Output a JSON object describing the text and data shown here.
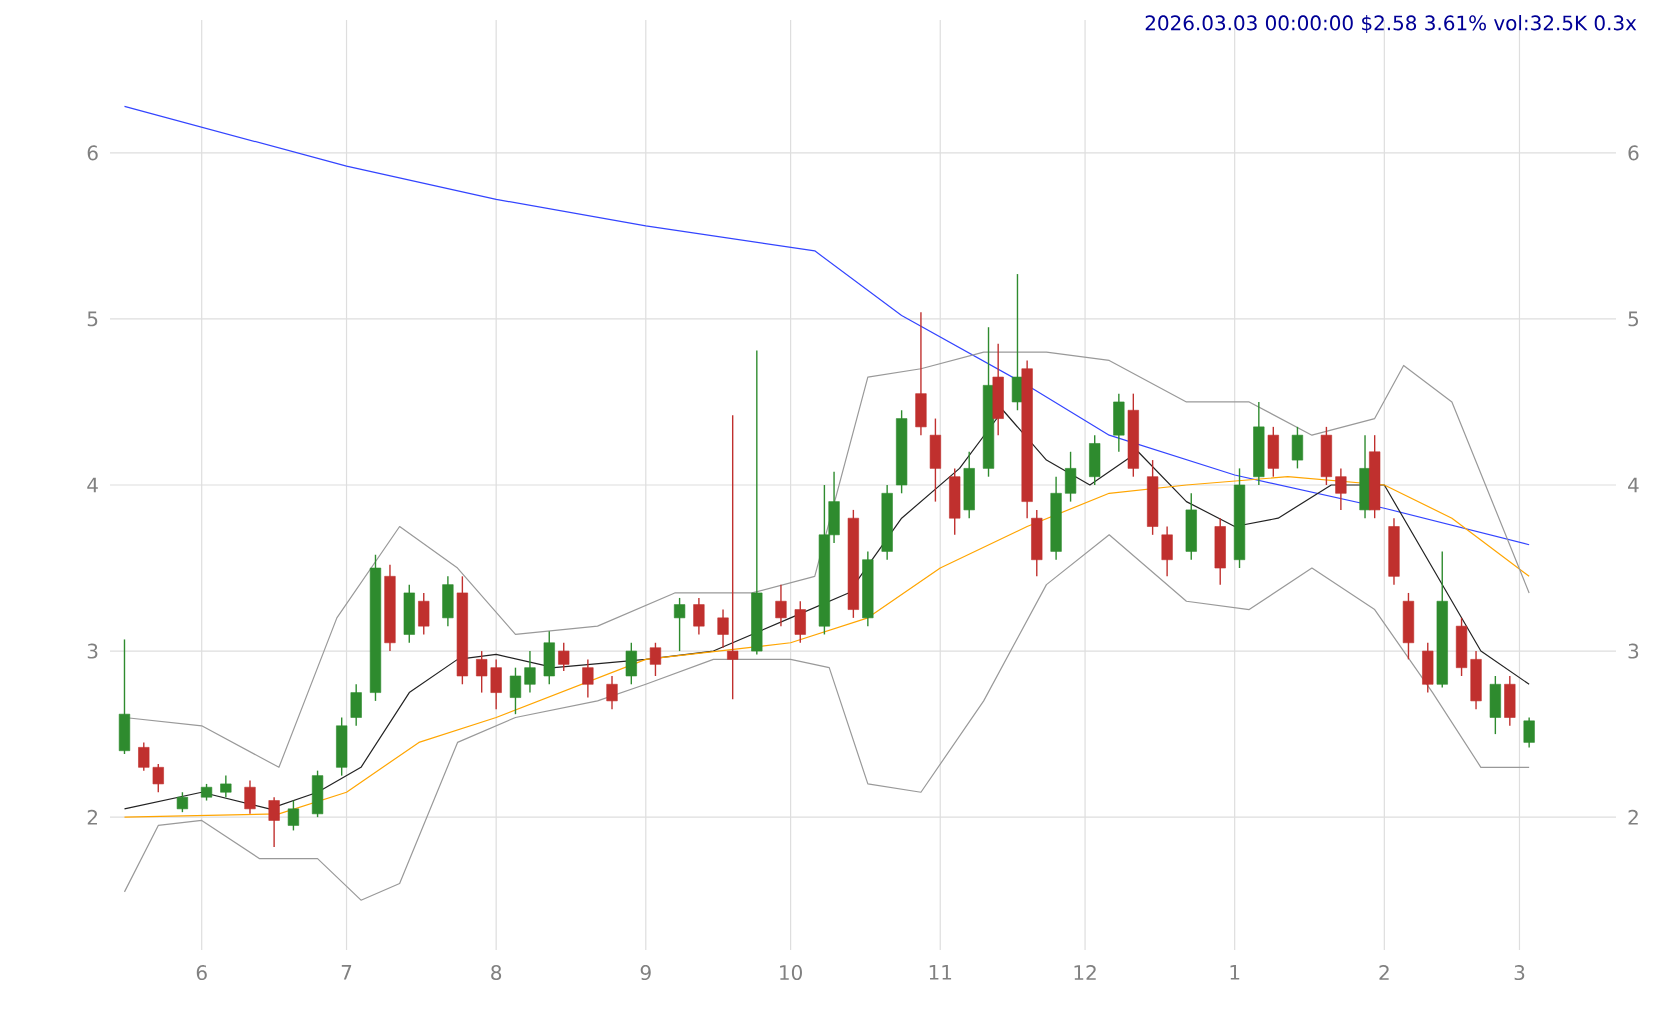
{
  "chart_data": {
    "type": "candlestick",
    "title": "2026.03.03 00:00:00 $2.58 3.61% vol:32.5K 0.3x",
    "x": [
      "2025-05-16",
      "2025-05-20",
      "2025-05-23",
      "2025-05-28",
      "2025-06-02",
      "2025-06-06",
      "2025-06-11",
      "2025-06-16",
      "2025-06-20",
      "2025-06-25",
      "2025-06-30",
      "2025-07-03",
      "2025-07-07",
      "2025-07-10",
      "2025-07-14",
      "2025-07-17",
      "2025-07-22",
      "2025-07-25",
      "2025-07-29",
      "2025-08-01",
      "2025-08-05",
      "2025-08-08",
      "2025-08-12",
      "2025-08-15",
      "2025-08-20",
      "2025-08-25",
      "2025-08-29",
      "2025-09-03",
      "2025-09-08",
      "2025-09-12",
      "2025-09-17",
      "2025-09-19",
      "2025-09-24",
      "2025-09-29",
      "2025-10-03",
      "2025-10-08",
      "2025-10-10",
      "2025-10-14",
      "2025-10-17",
      "2025-10-21",
      "2025-10-24",
      "2025-10-28",
      "2025-10-31",
      "2025-11-04",
      "2025-11-07",
      "2025-11-11",
      "2025-11-13",
      "2025-11-17",
      "2025-11-19",
      "2025-11-21",
      "2025-11-25",
      "2025-11-28",
      "2025-12-03",
      "2025-12-08",
      "2025-12-11",
      "2025-12-15",
      "2025-12-18",
      "2025-12-23",
      "2025-12-29",
      "2026-01-02",
      "2026-01-06",
      "2026-01-09",
      "2026-01-14",
      "2026-01-20",
      "2026-01-23",
      "2026-01-28",
      "2026-01-30",
      "2026-02-03",
      "2026-02-06",
      "2026-02-10",
      "2026-02-13",
      "2026-02-17",
      "2026-02-20",
      "2026-02-24",
      "2026-02-27",
      "2026-03-03"
    ],
    "ohlc": [
      [
        2.4,
        3.07,
        2.38,
        2.62
      ],
      [
        2.42,
        2.45,
        2.28,
        2.3
      ],
      [
        2.3,
        2.32,
        2.15,
        2.2
      ],
      [
        2.05,
        2.15,
        2.03,
        2.12
      ],
      [
        2.12,
        2.2,
        2.1,
        2.18
      ],
      [
        2.15,
        2.25,
        2.12,
        2.2
      ],
      [
        2.18,
        2.22,
        2.02,
        2.05
      ],
      [
        2.1,
        2.12,
        1.82,
        1.98
      ],
      [
        1.95,
        2.1,
        1.92,
        2.05
      ],
      [
        2.02,
        2.28,
        2.0,
        2.25
      ],
      [
        2.3,
        2.6,
        2.25,
        2.55
      ],
      [
        2.6,
        2.8,
        2.55,
        2.75
      ],
      [
        2.75,
        3.58,
        2.7,
        3.5
      ],
      [
        3.45,
        3.52,
        3.0,
        3.05
      ],
      [
        3.1,
        3.4,
        3.05,
        3.35
      ],
      [
        3.3,
        3.35,
        3.1,
        3.15
      ],
      [
        3.2,
        3.45,
        3.15,
        3.4
      ],
      [
        3.35,
        3.45,
        2.8,
        2.85
      ],
      [
        2.95,
        3.0,
        2.75,
        2.85
      ],
      [
        2.9,
        2.95,
        2.65,
        2.75
      ],
      [
        2.72,
        2.9,
        2.62,
        2.85
      ],
      [
        2.8,
        3.0,
        2.75,
        2.9
      ],
      [
        2.85,
        3.12,
        2.8,
        3.05
      ],
      [
        3.0,
        3.05,
        2.88,
        2.92
      ],
      [
        2.9,
        2.95,
        2.72,
        2.8
      ],
      [
        2.8,
        2.85,
        2.65,
        2.7
      ],
      [
        2.85,
        3.05,
        2.8,
        3.0
      ],
      [
        3.02,
        3.05,
        2.85,
        2.92
      ],
      [
        3.2,
        3.32,
        3.0,
        3.28
      ],
      [
        3.28,
        3.32,
        3.1,
        3.15
      ],
      [
        3.2,
        3.25,
        3.02,
        3.1
      ],
      [
        3.0,
        4.42,
        2.71,
        2.95
      ],
      [
        3.0,
        4.81,
        2.98,
        3.35
      ],
      [
        3.3,
        3.4,
        3.15,
        3.2
      ],
      [
        3.25,
        3.3,
        3.05,
        3.1
      ],
      [
        3.15,
        4.0,
        3.1,
        3.7
      ],
      [
        3.7,
        4.08,
        3.65,
        3.9
      ],
      [
        3.8,
        3.85,
        3.2,
        3.25
      ],
      [
        3.2,
        3.6,
        3.15,
        3.55
      ],
      [
        3.6,
        4.0,
        3.55,
        3.95
      ],
      [
        4.0,
        4.45,
        3.95,
        4.4
      ],
      [
        4.55,
        5.04,
        4.3,
        4.35
      ],
      [
        4.3,
        4.4,
        3.9,
        4.1
      ],
      [
        4.05,
        4.1,
        3.7,
        3.8
      ],
      [
        3.85,
        4.2,
        3.8,
        4.1
      ],
      [
        4.1,
        4.95,
        4.05,
        4.6
      ],
      [
        4.65,
        4.85,
        4.3,
        4.4
      ],
      [
        4.5,
        5.27,
        4.45,
        4.65
      ],
      [
        4.7,
        4.75,
        3.8,
        3.9
      ],
      [
        3.8,
        3.85,
        3.45,
        3.55
      ],
      [
        3.6,
        4.05,
        3.55,
        3.95
      ],
      [
        3.95,
        4.2,
        3.9,
        4.1
      ],
      [
        4.05,
        4.3,
        4.0,
        4.25
      ],
      [
        4.3,
        4.55,
        4.2,
        4.5
      ],
      [
        4.45,
        4.55,
        4.05,
        4.1
      ],
      [
        4.05,
        4.15,
        3.7,
        3.75
      ],
      [
        3.7,
        3.75,
        3.45,
        3.55
      ],
      [
        3.6,
        3.95,
        3.55,
        3.85
      ],
      [
        3.75,
        3.8,
        3.4,
        3.5
      ],
      [
        3.55,
        4.1,
        3.5,
        4.0
      ],
      [
        4.05,
        4.5,
        4.0,
        4.35
      ],
      [
        4.3,
        4.35,
        4.05,
        4.1
      ],
      [
        4.15,
        4.35,
        4.1,
        4.3
      ],
      [
        4.3,
        4.35,
        4.0,
        4.05
      ],
      [
        4.05,
        4.1,
        3.85,
        3.95
      ],
      [
        3.85,
        4.3,
        3.8,
        4.1
      ],
      [
        4.2,
        4.3,
        3.8,
        3.85
      ],
      [
        3.75,
        3.8,
        3.4,
        3.45
      ],
      [
        3.3,
        3.35,
        2.95,
        3.05
      ],
      [
        3.0,
        3.05,
        2.75,
        2.8
      ],
      [
        2.8,
        3.6,
        2.78,
        3.3
      ],
      [
        3.15,
        3.2,
        2.85,
        2.9
      ],
      [
        2.95,
        3.0,
        2.65,
        2.7
      ],
      [
        2.6,
        2.85,
        2.5,
        2.8
      ],
      [
        2.8,
        2.85,
        2.55,
        2.6
      ],
      [
        2.45,
        2.6,
        2.42,
        2.58
      ]
    ],
    "colors": [
      "#2e8b2e",
      "#c0302e",
      "#c0302e",
      "#2e8b2e",
      "#2e8b2e",
      "#2e8b2e",
      "#c0302e",
      "#c0302e",
      "#2e8b2e",
      "#2e8b2e",
      "#2e8b2e",
      "#2e8b2e",
      "#2e8b2e",
      "#c0302e",
      "#2e8b2e",
      "#c0302e",
      "#2e8b2e",
      "#c0302e",
      "#c0302e",
      "#c0302e",
      "#2e8b2e",
      "#2e8b2e",
      "#2e8b2e",
      "#c0302e",
      "#c0302e",
      "#c0302e",
      "#2e8b2e",
      "#c0302e",
      "#2e8b2e",
      "#c0302e",
      "#c0302e",
      "#c0302e",
      "#2e8b2e",
      "#c0302e",
      "#c0302e",
      "#2e8b2e",
      "#2e8b2e",
      "#c0302e",
      "#2e8b2e",
      "#2e8b2e",
      "#2e8b2e",
      "#c0302e",
      "#c0302e",
      "#c0302e",
      "#2e8b2e",
      "#2e8b2e",
      "#c0302e",
      "#2e8b2e",
      "#c0302e",
      "#c0302e",
      "#2e8b2e",
      "#2e8b2e",
      "#2e8b2e",
      "#2e8b2e",
      "#c0302e",
      "#c0302e",
      "#c0302e",
      "#2e8b2e",
      "#c0302e",
      "#2e8b2e",
      "#2e8b2e",
      "#c0302e",
      "#2e8b2e",
      "#c0302e",
      "#c0302e",
      "#2e8b2e",
      "#c0302e",
      "#c0302e",
      "#c0302e",
      "#c0302e",
      "#2e8b2e",
      "#c0302e",
      "#c0302e",
      "#2e8b2e",
      "#c0302e",
      "#2e8b2e"
    ],
    "series": [
      {
        "type": "line",
        "color": "#3344ff",
        "x": [
          "2025-05-16",
          "2025-07-01",
          "2025-08-01",
          "2025-09-01",
          "2025-10-06",
          "2025-10-24",
          "2025-11-19",
          "2025-12-06",
          "2026-01-01",
          "2026-02-01",
          "2026-03-03"
        ],
        "values": [
          6.28,
          5.92,
          5.72,
          5.56,
          5.41,
          5.02,
          4.6,
          4.3,
          4.06,
          3.86,
          3.64
        ]
      },
      {
        "type": "line",
        "color": "#222222",
        "x": [
          "2025-05-16",
          "2025-06-01",
          "2025-06-15",
          "2025-06-25",
          "2025-07-04",
          "2025-07-14",
          "2025-07-24",
          "2025-08-01",
          "2025-08-13",
          "2025-09-01",
          "2025-09-15",
          "2025-10-01",
          "2025-10-13",
          "2025-10-24",
          "2025-11-05",
          "2025-11-14",
          "2025-11-23",
          "2025-12-02",
          "2025-12-12",
          "2025-12-22",
          "2026-01-01",
          "2026-01-10",
          "2026-01-21",
          "2026-02-01",
          "2026-02-11",
          "2026-02-21",
          "2026-03-03"
        ],
        "values": [
          2.05,
          2.15,
          2.05,
          2.15,
          2.3,
          2.75,
          2.95,
          2.98,
          2.9,
          2.95,
          3.0,
          3.2,
          3.35,
          3.8,
          4.1,
          4.45,
          4.15,
          4.0,
          4.2,
          3.9,
          3.75,
          3.8,
          4.0,
          4.0,
          3.5,
          3.0,
          2.8
        ]
      },
      {
        "type": "line",
        "color": "#ffa500",
        "x": [
          "2025-05-16",
          "2025-06-17",
          "2025-07-01",
          "2025-07-16",
          "2025-08-01",
          "2025-09-01",
          "2025-10-01",
          "2025-10-17",
          "2025-11-01",
          "2025-11-19",
          "2025-12-06",
          "2025-12-22",
          "2026-01-12",
          "2026-02-01",
          "2026-02-15",
          "2026-03-03"
        ],
        "values": [
          2.0,
          2.02,
          2.15,
          2.45,
          2.6,
          2.95,
          3.05,
          3.2,
          3.5,
          3.75,
          3.95,
          4.0,
          4.05,
          4.0,
          3.8,
          3.45
        ]
      },
      {
        "type": "line",
        "color": "#999999",
        "x": [
          "2025-05-16",
          "2025-06-01",
          "2025-06-17",
          "2025-06-29",
          "2025-07-12",
          "2025-07-24",
          "2025-08-05",
          "2025-08-22",
          "2025-09-07",
          "2025-09-23",
          "2025-10-06",
          "2025-10-17",
          "2025-10-28",
          "2025-11-10",
          "2025-11-23",
          "2025-12-06",
          "2025-12-22",
          "2026-01-04",
          "2026-01-17",
          "2026-01-30",
          "2026-02-05",
          "2026-02-15",
          "2026-03-03"
        ],
        "values": [
          2.6,
          2.55,
          2.3,
          3.2,
          3.75,
          3.5,
          3.1,
          3.15,
          3.35,
          3.35,
          3.45,
          4.65,
          4.7,
          4.8,
          4.8,
          4.75,
          4.5,
          4.5,
          4.3,
          4.4,
          4.72,
          4.5,
          3.35
        ]
      },
      {
        "type": "line",
        "color": "#999999",
        "x": [
          "2025-05-16",
          "2025-05-23",
          "2025-06-01",
          "2025-06-13",
          "2025-06-25",
          "2025-07-04",
          "2025-07-12",
          "2025-07-24",
          "2025-08-05",
          "2025-08-22",
          "2025-09-01",
          "2025-09-15",
          "2025-10-01",
          "2025-10-09",
          "2025-10-17",
          "2025-10-28",
          "2025-11-10",
          "2025-11-23",
          "2025-12-06",
          "2025-12-22",
          "2026-01-04",
          "2026-01-17",
          "2026-01-30",
          "2026-02-11",
          "2026-02-21",
          "2026-03-03"
        ],
        "values": [
          1.55,
          1.95,
          1.98,
          1.75,
          1.75,
          1.5,
          1.6,
          2.45,
          2.6,
          2.7,
          2.8,
          2.95,
          2.95,
          2.9,
          2.2,
          2.15,
          2.7,
          3.4,
          3.7,
          3.3,
          3.25,
          3.5,
          3.25,
          2.75,
          2.3,
          2.3
        ]
      }
    ],
    "xlim": [
      "2025-05-13",
      "2026-03-21"
    ],
    "xticks": [
      {
        "value": "2025-06-01",
        "label": "6"
      },
      {
        "value": "2025-07-01",
        "label": "7"
      },
      {
        "value": "2025-08-01",
        "label": "8"
      },
      {
        "value": "2025-09-01",
        "label": "9"
      },
      {
        "value": "2025-10-01",
        "label": "10"
      },
      {
        "value": "2025-11-01",
        "label": "11"
      },
      {
        "value": "2025-12-01",
        "label": "12"
      },
      {
        "value": "2026-01-01",
        "label": "1"
      },
      {
        "value": "2026-02-01",
        "label": "2"
      },
      {
        "value": "2026-03-01",
        "label": "3"
      }
    ],
    "ylim": [
      1.2,
      6.8
    ],
    "yticks": [
      2,
      3,
      4,
      5,
      6
    ],
    "y2lim": [
      1.2,
      6.8
    ],
    "y2ticks": [
      2,
      3,
      4,
      5,
      6
    ],
    "grid": true
  }
}
